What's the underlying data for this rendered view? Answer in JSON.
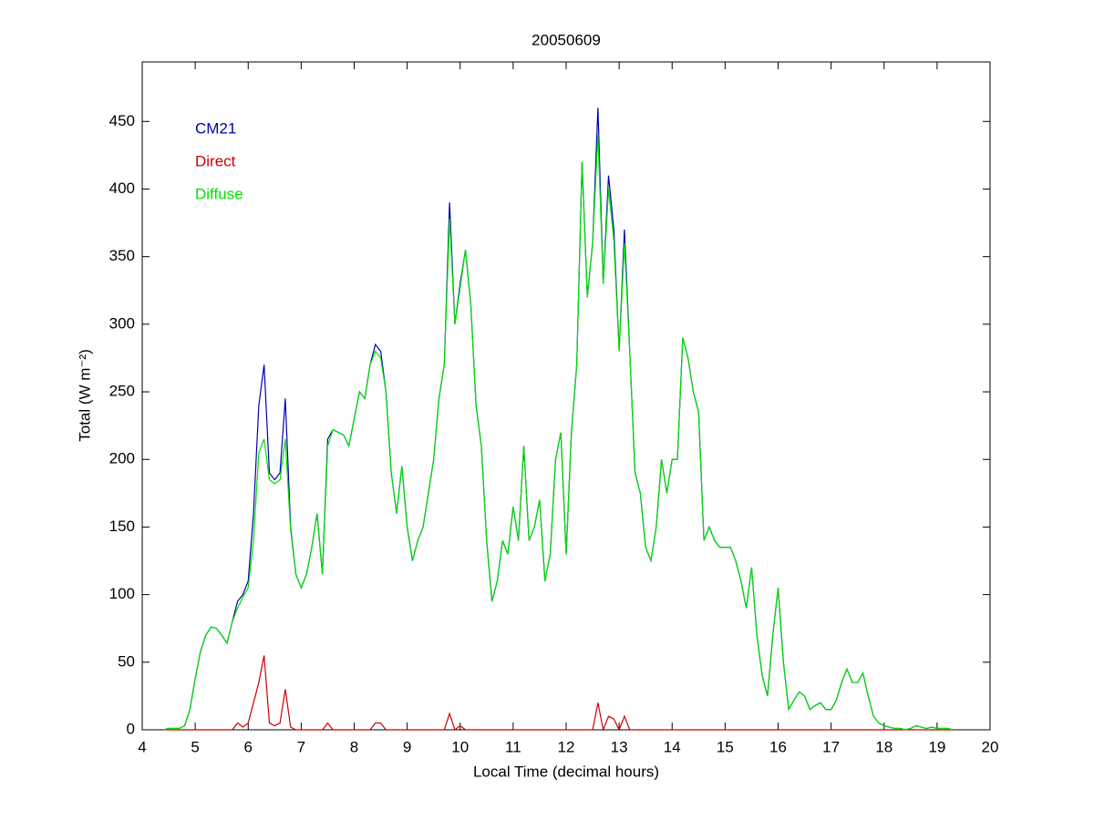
{
  "chart_data": {
    "type": "line",
    "title": "20050609",
    "x_label": "Local Time (decimal hours)",
    "y_label": "Total (W m⁻²)",
    "x": [
      4.4,
      4.5,
      4.6,
      4.7,
      4.8,
      4.9,
      5.0,
      5.1,
      5.2,
      5.3,
      5.4,
      5.5,
      5.6,
      5.7,
      5.8,
      5.9,
      6.0,
      6.1,
      6.2,
      6.3,
      6.4,
      6.5,
      6.6,
      6.7,
      6.8,
      6.9,
      7.0,
      7.1,
      7.2,
      7.3,
      7.4,
      7.5,
      7.6,
      7.7,
      7.8,
      7.9,
      8.0,
      8.1,
      8.2,
      8.3,
      8.4,
      8.5,
      8.6,
      8.7,
      8.8,
      8.9,
      9.0,
      9.1,
      9.2,
      9.3,
      9.4,
      9.5,
      9.6,
      9.7,
      9.8,
      9.9,
      10.0,
      10.1,
      10.2,
      10.3,
      10.4,
      10.5,
      10.6,
      10.7,
      10.8,
      10.9,
      11.0,
      11.1,
      11.2,
      11.3,
      11.4,
      11.5,
      11.6,
      11.7,
      11.8,
      11.9,
      12.0,
      12.1,
      12.2,
      12.3,
      12.4,
      12.5,
      12.6,
      12.7,
      12.8,
      12.9,
      13.0,
      13.1,
      13.2,
      13.3,
      13.4,
      13.5,
      13.6,
      13.7,
      13.8,
      13.9,
      14.0,
      14.1,
      14.2,
      14.3,
      14.4,
      14.5,
      14.6,
      14.7,
      14.8,
      14.9,
      15.0,
      15.1,
      15.2,
      15.3,
      15.4,
      15.5,
      15.6,
      15.7,
      15.8,
      15.9,
      16.0,
      16.1,
      16.2,
      16.3,
      16.4,
      16.5,
      16.6,
      16.7,
      16.8,
      16.9,
      17.0,
      17.1,
      17.2,
      17.3,
      17.4,
      17.5,
      17.6,
      17.7,
      17.8,
      17.9,
      18.0,
      18.1,
      18.2,
      18.3,
      18.4,
      18.5,
      18.6,
      18.7,
      18.8,
      18.9,
      19.0,
      19.1,
      19.2,
      19.3
    ],
    "series": [
      {
        "name": "CM21",
        "color": "#0000b0",
        "values": [
          0,
          1,
          1,
          1,
          3,
          15,
          38,
          58,
          70,
          76,
          75,
          70,
          64,
          80,
          95,
          100,
          110,
          160,
          240,
          270,
          190,
          185,
          190,
          245,
          150,
          115,
          105,
          115,
          135,
          160,
          115,
          215,
          222,
          220,
          218,
          210,
          230,
          250,
          245,
          270,
          285,
          280,
          250,
          190,
          160,
          195,
          150,
          125,
          140,
          150,
          175,
          200,
          245,
          270,
          390,
          300,
          330,
          355,
          315,
          240,
          210,
          140,
          95,
          110,
          140,
          130,
          165,
          140,
          210,
          140,
          150,
          170,
          110,
          130,
          200,
          220,
          130,
          220,
          270,
          420,
          320,
          360,
          460,
          330,
          410,
          370,
          280,
          370,
          280,
          190,
          175,
          135,
          125,
          150,
          200,
          175,
          200,
          200,
          290,
          275,
          250,
          235,
          140,
          150,
          140,
          135,
          135,
          135,
          125,
          110,
          90,
          120,
          70,
          40,
          25,
          70,
          105,
          50,
          15,
          22,
          28,
          25,
          15,
          18,
          20,
          15,
          15,
          22,
          35,
          45,
          35,
          35,
          42,
          25,
          10,
          5,
          3,
          2,
          1,
          1,
          0,
          1,
          3,
          2,
          1,
          2,
          1,
          1,
          1,
          0
        ]
      },
      {
        "name": "Direct",
        "color": "#cc0000",
        "values": [
          0,
          0,
          0,
          0,
          0,
          0,
          0,
          0,
          0,
          0,
          0,
          0,
          0,
          0,
          5,
          2,
          5,
          20,
          35,
          55,
          5,
          3,
          5,
          30,
          2,
          0,
          0,
          0,
          0,
          0,
          0,
          5,
          0,
          0,
          0,
          0,
          0,
          0,
          0,
          0,
          5,
          5,
          0,
          0,
          0,
          0,
          0,
          0,
          0,
          0,
          0,
          0,
          0,
          0,
          12,
          0,
          3,
          0,
          0,
          0,
          0,
          0,
          0,
          0,
          0,
          0,
          0,
          0,
          0,
          0,
          0,
          0,
          0,
          0,
          0,
          0,
          0,
          0,
          0,
          0,
          0,
          0,
          20,
          0,
          10,
          8,
          0,
          10,
          0,
          0,
          0,
          0,
          0,
          0,
          0,
          0,
          0,
          0,
          0,
          0,
          0,
          0,
          0,
          0,
          0,
          0,
          0,
          0,
          0,
          0,
          0,
          0,
          0,
          0,
          0,
          0,
          0,
          0,
          0,
          0,
          0,
          0,
          0,
          0,
          0,
          0,
          0,
          0,
          0,
          0,
          0,
          0,
          0,
          0,
          0,
          0,
          0,
          0,
          0,
          0,
          0,
          0,
          0,
          0,
          0,
          0,
          0,
          0,
          0,
          0
        ]
      },
      {
        "name": "Diffuse",
        "color": "#00e000",
        "values": [
          0,
          1,
          1,
          1,
          3,
          15,
          38,
          58,
          70,
          76,
          75,
          70,
          64,
          80,
          90,
          98,
          105,
          140,
          205,
          215,
          185,
          182,
          185,
          215,
          148,
          115,
          105,
          115,
          135,
          160,
          115,
          210,
          222,
          220,
          218,
          210,
          230,
          250,
          245,
          270,
          280,
          275,
          250,
          190,
          160,
          195,
          150,
          125,
          140,
          150,
          175,
          200,
          245,
          270,
          378,
          300,
          327,
          355,
          315,
          240,
          210,
          140,
          95,
          110,
          140,
          130,
          165,
          140,
          210,
          140,
          150,
          170,
          110,
          130,
          200,
          220,
          130,
          220,
          270,
          420,
          320,
          360,
          440,
          330,
          400,
          362,
          280,
          360,
          280,
          190,
          175,
          135,
          125,
          150,
          200,
          175,
          200,
          200,
          290,
          275,
          250,
          235,
          140,
          150,
          140,
          135,
          135,
          135,
          125,
          110,
          90,
          120,
          70,
          40,
          25,
          70,
          105,
          50,
          15,
          22,
          28,
          25,
          15,
          18,
          20,
          15,
          15,
          22,
          35,
          45,
          35,
          35,
          42,
          25,
          10,
          5,
          3,
          2,
          1,
          1,
          0,
          1,
          3,
          2,
          1,
          2,
          1,
          1,
          1,
          0
        ]
      }
    ],
    "xlim": [
      4,
      20
    ],
    "xticks": [
      4,
      5,
      6,
      7,
      8,
      9,
      10,
      11,
      12,
      13,
      14,
      15,
      16,
      17,
      18,
      19,
      20
    ],
    "ylim": [
      0,
      494
    ],
    "yticks": [
      0,
      50,
      100,
      150,
      200,
      250,
      300,
      350,
      400,
      450
    ],
    "grid": false,
    "legend": "upper left"
  }
}
